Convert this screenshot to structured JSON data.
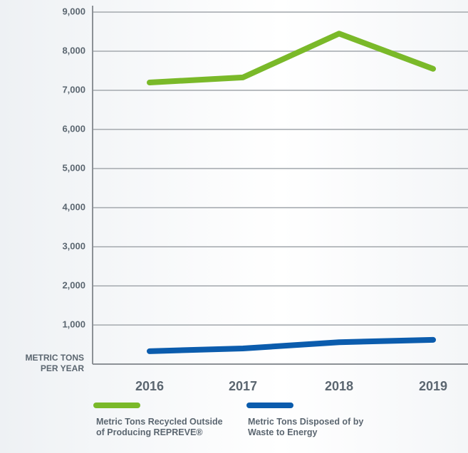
{
  "chart_data": {
    "type": "line",
    "y_label": "METRIC TONS PER YEAR",
    "categories": [
      "2016",
      "2017",
      "2018",
      "2019"
    ],
    "series": [
      {
        "name": "Metric Tons Recycled Outside of Producing REPREVE®",
        "color": "#7ab929",
        "values": [
          7200,
          7330,
          8450,
          7550
        ]
      },
      {
        "name": "Metric Tons Disposed of by Waste to Energy",
        "color": "#0b5cad",
        "values": [
          330,
          400,
          560,
          620
        ]
      }
    ],
    "ylim": [
      0,
      9000
    ],
    "yticks": [
      {
        "value": 1000,
        "label": "1,000"
      },
      {
        "value": 2000,
        "label": "2,000"
      },
      {
        "value": 3000,
        "label": "3,000"
      },
      {
        "value": 4000,
        "label": "4,000"
      },
      {
        "value": 5000,
        "label": "5,000"
      },
      {
        "value": 6000,
        "label": "6,000"
      },
      {
        "value": 7000,
        "label": "7,000"
      },
      {
        "value": 8000,
        "label": "8,000"
      },
      {
        "value": 9000,
        "label": "9,000"
      }
    ],
    "grid": true
  }
}
